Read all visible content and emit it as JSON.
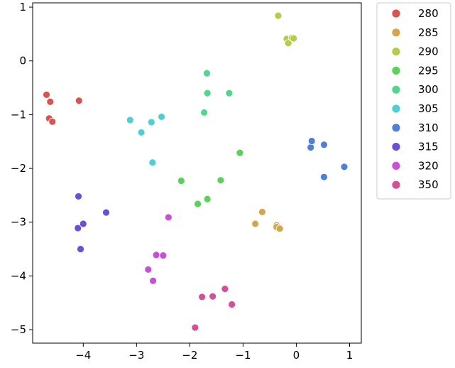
{
  "chart_data": {
    "type": "scatter",
    "title": "",
    "xlabel": "",
    "ylabel": "",
    "xlim": [
      -4.95,
      1.22
    ],
    "ylim": [
      -5.25,
      1.08
    ],
    "xticks": [
      -4,
      -3,
      -2,
      -1,
      0,
      1
    ],
    "yticks": [
      1,
      0,
      -1,
      -2,
      -3,
      -4,
      -5
    ],
    "grid": false,
    "legend_position": "outside-right-top",
    "series": [
      {
        "name": "280",
        "color": "#d9534f",
        "points": [
          [
            -4.69,
            -0.63
          ],
          [
            -4.62,
            -0.76
          ],
          [
            -4.64,
            -1.07
          ],
          [
            -4.58,
            -1.13
          ],
          [
            -4.08,
            -0.74
          ]
        ]
      },
      {
        "name": "285",
        "color": "#d4a54f",
        "points": [
          [
            -0.77,
            -3.03
          ],
          [
            -0.64,
            -2.81
          ],
          [
            -0.37,
            -3.06
          ],
          [
            -0.37,
            -3.09
          ],
          [
            -0.31,
            -3.12
          ]
        ]
      },
      {
        "name": "290",
        "color": "#b5cc4a",
        "points": [
          [
            -0.34,
            0.84
          ],
          [
            -0.18,
            0.41
          ],
          [
            -0.15,
            0.33
          ],
          [
            -0.08,
            0.43
          ],
          [
            -0.05,
            0.42
          ]
        ]
      },
      {
        "name": "295",
        "color": "#5bd15b",
        "points": [
          [
            -2.16,
            -2.23
          ],
          [
            -1.85,
            -2.66
          ],
          [
            -1.67,
            -2.57
          ],
          [
            -1.42,
            -2.22
          ],
          [
            -1.06,
            -1.71
          ]
        ]
      },
      {
        "name": "300",
        "color": "#4fd68f",
        "points": [
          [
            -1.73,
            -0.96
          ],
          [
            -1.68,
            -0.23
          ],
          [
            -1.67,
            -0.6
          ],
          [
            -1.26,
            -0.6
          ]
        ]
      },
      {
        "name": "305",
        "color": "#4ecfd2",
        "points": [
          [
            -3.12,
            -1.1
          ],
          [
            -2.91,
            -1.33
          ],
          [
            -2.72,
            -1.14
          ],
          [
            -2.7,
            -1.89
          ],
          [
            -2.53,
            -1.04
          ]
        ]
      },
      {
        "name": "310",
        "color": "#4f7fd6",
        "points": [
          [
            0.27,
            -1.61
          ],
          [
            0.29,
            -1.49
          ],
          [
            0.52,
            -1.56
          ],
          [
            0.52,
            -2.16
          ],
          [
            0.9,
            -1.97
          ]
        ]
      },
      {
        "name": "315",
        "color": "#6b4fd6",
        "points": [
          [
            -4.09,
            -2.52
          ],
          [
            -4.1,
            -3.11
          ],
          [
            -4.0,
            -3.03
          ],
          [
            -4.05,
            -3.5
          ],
          [
            -3.57,
            -2.82
          ]
        ]
      },
      {
        "name": "320",
        "color": "#c94fd9",
        "points": [
          [
            -2.4,
            -2.91
          ],
          [
            -2.63,
            -3.61
          ],
          [
            -2.5,
            -3.62
          ],
          [
            -2.78,
            -3.88
          ],
          [
            -2.69,
            -4.09
          ]
        ]
      },
      {
        "name": "350",
        "color": "#d44f97",
        "points": [
          [
            -1.9,
            -4.96
          ],
          [
            -1.77,
            -4.39
          ],
          [
            -1.57,
            -4.38
          ],
          [
            -1.34,
            -4.24
          ],
          [
            -1.21,
            -4.53
          ]
        ]
      }
    ]
  }
}
